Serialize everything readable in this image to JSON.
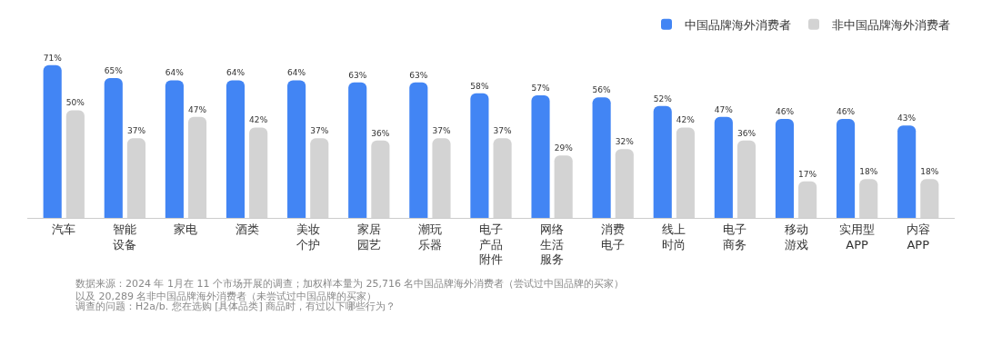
{
  "chart_data": {
    "type": "bar",
    "categories": [
      "汽车",
      "智能设备",
      "家电",
      "酒类",
      "美妆个护",
      "家居园艺",
      "潮玩乐器",
      "电子产品附件",
      "网络生活服务",
      "消费电子",
      "线上时尚",
      "电子商务",
      "移动游戏",
      "实用型APP",
      "内容APP"
    ],
    "series": [
      {
        "name": "中国品牌海外消费者",
        "color": "#4285f4",
        "values": [
          71,
          65,
          64,
          64,
          64,
          63,
          63,
          58,
          57,
          56,
          52,
          47,
          46,
          46,
          43
        ],
        "value_labels": [
          "71%",
          "65%",
          "64%",
          "64%",
          "64%",
          "63%",
          "63%",
          "58%",
          "57%",
          "56%",
          "52%",
          "47%",
          "46%",
          "46%",
          "43%"
        ]
      },
      {
        "name": "非中国品牌海外消费者",
        "color": "#d3d3d3",
        "values": [
          50,
          37,
          47,
          42,
          37,
          36,
          37,
          37,
          29,
          32,
          42,
          36,
          17,
          18,
          18
        ],
        "value_labels": [
          "50%",
          "37%",
          "47%",
          "42%",
          "37%",
          "36%",
          "37%",
          "37%",
          "29%",
          "32%",
          "42%",
          "36%",
          "17%",
          "18%",
          "18%"
        ]
      }
    ],
    "legend": "top right",
    "annotations": [
      "数据来源：2024 年 1月在 11 个市场开展的调查；加权样本量为 25,716 名中国品牌海外消费者（尝试过中国品牌的买家）以及 20,289 名非中国品牌海外消费者（未尝试过中国品牌的买家）",
      "调查的问题：H2a/b. 您在选购 [具体品类] 商品时，有过以下哪些行为？"
    ]
  }
}
